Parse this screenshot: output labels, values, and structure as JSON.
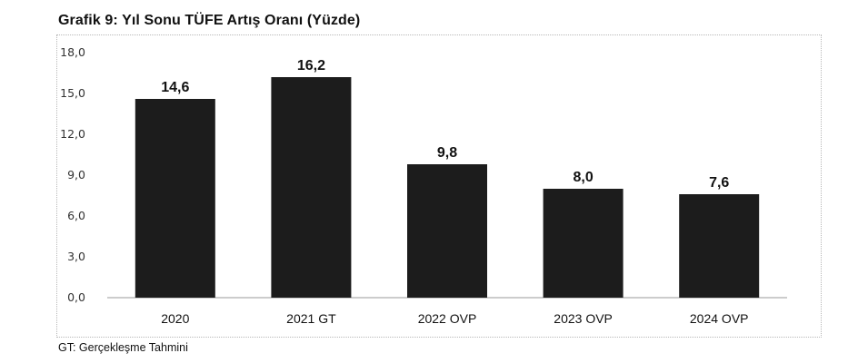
{
  "chart_data": {
    "type": "bar",
    "title": "Grafik 9: Yıl Sonu TÜFE Artış Oranı (Yüzde)",
    "categories": [
      "2020",
      "2021 GT",
      "2022 OVP",
      "2023 OVP",
      "2024 OVP"
    ],
    "values": [
      14.6,
      16.2,
      9.8,
      8.0,
      7.6
    ],
    "value_labels": [
      "14,6",
      "16,2",
      "9,8",
      "8,0",
      "7,6"
    ],
    "yticks": [
      "0,0",
      "3,0",
      "6,0",
      "9,0",
      "12,0",
      "15,0",
      "18,0"
    ],
    "ylim": [
      0,
      18
    ],
    "xlabel": "",
    "ylabel": "",
    "grid": false,
    "bar_color": "#1c1c1c"
  },
  "footnote": "GT: Gerçekleşme Tahmini"
}
